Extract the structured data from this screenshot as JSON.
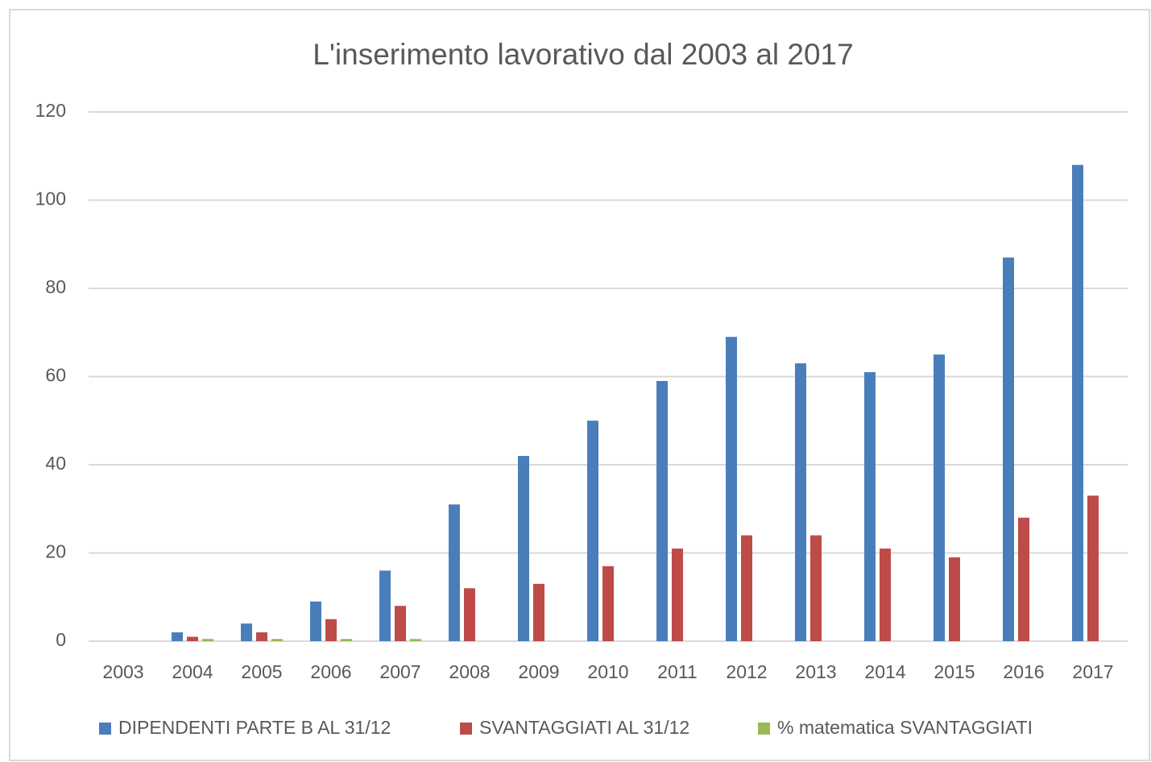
{
  "chart_data": {
    "type": "bar",
    "title": "L'inserimento lavorativo dal 2003 al 2017",
    "categories": [
      "2003",
      "2004",
      "2005",
      "2006",
      "2007",
      "2008",
      "2009",
      "2010",
      "2011",
      "2012",
      "2013",
      "2014",
      "2015",
      "2016",
      "2017"
    ],
    "series": [
      {
        "name": "DIPENDENTI PARTE B AL 31/12",
        "color": "#4a7ebb",
        "values": [
          0,
          2,
          4,
          9,
          16,
          31,
          42,
          50,
          59,
          69,
          63,
          61,
          65,
          87,
          108
        ]
      },
      {
        "name": "SVANTAGGIATI AL 31/12",
        "color": "#be4b48",
        "values": [
          0,
          1,
          2,
          5,
          8,
          12,
          13,
          17,
          21,
          24,
          24,
          21,
          19,
          28,
          33
        ]
      },
      {
        "name": "% matematica SVANTAGGIATI",
        "color": "#98b954",
        "values": [
          0,
          0.5,
          0.5,
          0.5,
          0.5,
          0,
          0,
          0,
          0,
          0,
          0,
          0,
          0,
          0,
          0
        ]
      }
    ],
    "ylim": [
      0,
      120
    ],
    "yticks": [
      0,
      20,
      40,
      60,
      80,
      100,
      120
    ],
    "grid": true,
    "legend": "bottom"
  }
}
